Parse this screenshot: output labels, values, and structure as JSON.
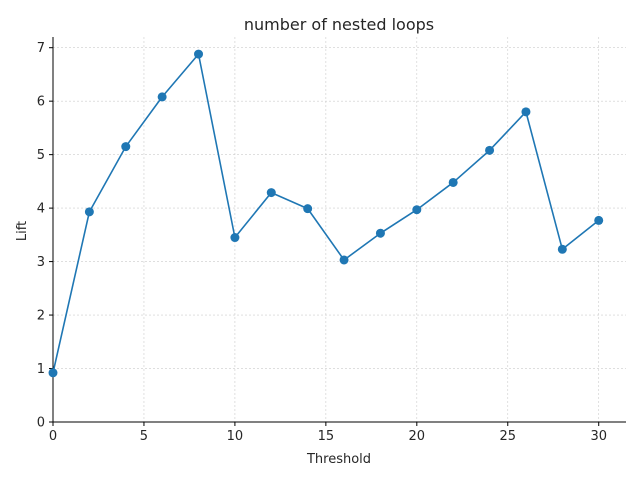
{
  "chart_data": {
    "type": "line",
    "title": "number of nested loops",
    "xlabel": "Threshold",
    "ylabel": "Lift",
    "xlim": [
      0,
      31.5
    ],
    "ylim": [
      0,
      7.2
    ],
    "xticks": [
      0,
      5,
      10,
      15,
      20,
      25,
      30
    ],
    "yticks": [
      0,
      1,
      2,
      3,
      4,
      5,
      6,
      7
    ],
    "grid": true,
    "color": "#1f77b4",
    "series": [
      {
        "x": [
          0,
          2,
          4,
          6,
          8,
          10,
          12,
          14,
          16,
          18,
          20,
          22,
          24,
          26,
          28,
          30
        ],
        "values": [
          0.92,
          3.93,
          5.15,
          6.08,
          6.88,
          3.45,
          4.29,
          3.99,
          3.03,
          3.53,
          3.97,
          4.48,
          5.08,
          5.8,
          3.23,
          3.77
        ]
      }
    ]
  }
}
